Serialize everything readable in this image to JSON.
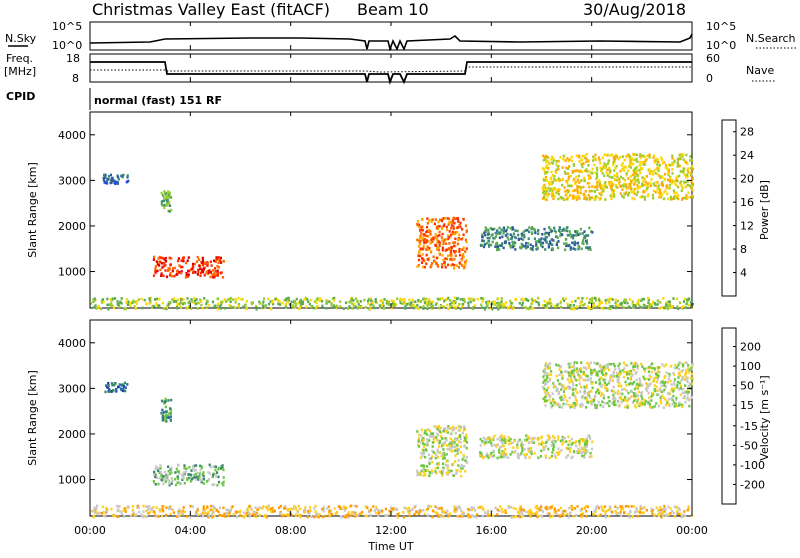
{
  "header": {
    "title": "Christmas Valley East (fitACF)",
    "beam": "Beam 10",
    "date": "30/Aug/2018"
  },
  "top_panels": {
    "nsky_label": "N.Sky",
    "nsky_ticks": [
      "10^5",
      "10^0"
    ],
    "nsearch_label": "N.Search",
    "nsearch_ticks": [
      "10^5",
      "10^0"
    ],
    "freq_label_line1": "Freq.",
    "freq_label_line2": "[MHz]",
    "freq_ticks": [
      "18",
      "8"
    ],
    "nave_label": "Nave",
    "nave_ticks": [
      "60",
      "0"
    ],
    "cpid_label": "CPID",
    "cpid_text": "normal (fast) 151 RF"
  },
  "power_panel": {
    "ylabel": "Slant Range [km]",
    "yticks": [
      "4000",
      "3000",
      "2000",
      "1000"
    ],
    "colorbar_label": "Power [dB]",
    "colorbar_ticks": [
      "28",
      "24",
      "20",
      "16",
      "12",
      "8",
      "4"
    ],
    "colors": [
      "#0000e0",
      "#2040ff",
      "#2c5a9a",
      "#3a8a78",
      "#5aaa50",
      "#9ccc30",
      "#ffd800",
      "#ffaa00",
      "#ff6a00",
      "#ff3000",
      "#e00000"
    ]
  },
  "velocity_panel": {
    "ylabel": "Slant Range [km]",
    "yticks": [
      "4000",
      "3000",
      "2000",
      "1000"
    ],
    "colorbar_label": "Velocity [m s⁻¹]",
    "colorbar_ticks": [
      "200",
      "100",
      "50",
      "15",
      "-15",
      "-50",
      "-100",
      "-200"
    ],
    "colors": [
      "#1a3ab4",
      "#2a6aa0",
      "#3a8a6a",
      "#6ac840",
      "#c8c8c8",
      "#ffd020",
      "#ff9a00",
      "#ff5a00",
      "#e80000"
    ]
  },
  "x_axis": {
    "xlabel": "Time UT",
    "ticks": [
      "00:00",
      "04:00",
      "08:00",
      "12:00",
      "16:00",
      "20:00",
      "00:00"
    ]
  },
  "chart_data": [
    {
      "type": "heatmap",
      "name": "power",
      "x_range_hours": [
        0,
        24
      ],
      "ylim": [
        200,
        4500
      ],
      "patches": [
        {
          "t0": 2.5,
          "t1": 5.3,
          "r0": 900,
          "r1": 1350,
          "level": 9
        },
        {
          "t0": 2.8,
          "t1": 3.2,
          "r0": 2300,
          "r1": 2800,
          "level": 4
        },
        {
          "t0": 13.0,
          "t1": 15.0,
          "r0": 1100,
          "r1": 2200,
          "level": 8
        },
        {
          "t0": 15.5,
          "t1": 20.0,
          "r0": 1500,
          "r1": 2000,
          "level": 3
        },
        {
          "t0": 18.0,
          "t1": 24.0,
          "r0": 2600,
          "r1": 3600,
          "level": 6
        },
        {
          "t0": 0.5,
          "t1": 1.5,
          "r0": 2950,
          "r1": 3150,
          "level": 2
        },
        {
          "t0": 0.0,
          "t1": 24.0,
          "r0": 200,
          "r1": 450,
          "level": 5
        }
      ]
    },
    {
      "type": "heatmap",
      "name": "velocity",
      "x_range_hours": [
        0,
        24
      ],
      "ylim": [
        200,
        4500
      ],
      "patches": [
        {
          "t0": 2.5,
          "t1": 5.3,
          "r0": 900,
          "r1": 1350,
          "level": 3
        },
        {
          "t0": 2.8,
          "t1": 3.2,
          "r0": 2300,
          "r1": 2800,
          "level": 2
        },
        {
          "t0": 13.0,
          "t1": 15.0,
          "r0": 1100,
          "r1": 2200,
          "level": 4
        },
        {
          "t0": 15.5,
          "t1": 20.0,
          "r0": 1500,
          "r1": 2000,
          "level": 4
        },
        {
          "t0": 18.0,
          "t1": 24.0,
          "r0": 2600,
          "r1": 3600,
          "level": 4
        },
        {
          "t0": 0.5,
          "t1": 1.5,
          "r0": 2950,
          "r1": 3150,
          "level": 1
        },
        {
          "t0": 0.0,
          "t1": 24.0,
          "r0": 200,
          "r1": 450,
          "level": 5
        }
      ]
    }
  ]
}
